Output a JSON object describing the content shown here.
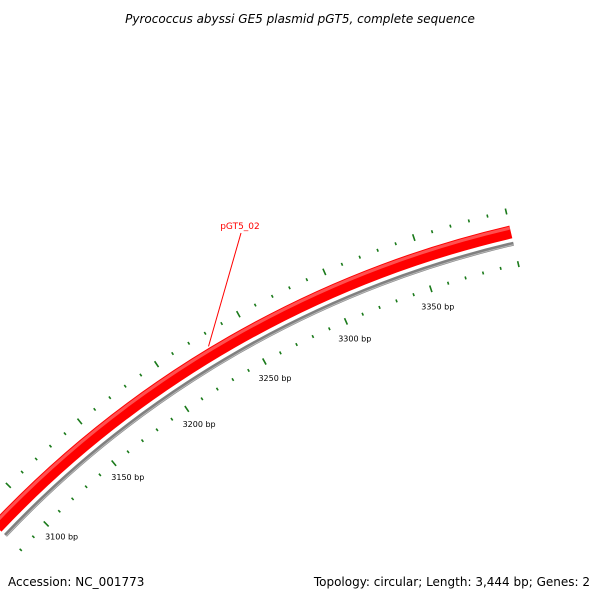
{
  "title": "Pyrococcus abyssi GE5 plasmid pGT5, complete sequence",
  "footer": {
    "accession": "Accession: NC_001773",
    "summary": "Topology: circular; Length: 3,444 bp; Genes: 2"
  },
  "map": {
    "genome_length_bp": 3444,
    "gene": {
      "name": "pGT5_02",
      "color": "#ff0000"
    },
    "backbone_color": "#808080",
    "tick_color": "#1a7a1a",
    "major_ticks": [
      {
        "bp": 3100,
        "label": "3100 bp"
      },
      {
        "bp": 3150,
        "label": "3150 bp"
      },
      {
        "bp": 3200,
        "label": "3200 bp"
      },
      {
        "bp": 3250,
        "label": "3250 bp"
      },
      {
        "bp": 3300,
        "label": "3300 bp"
      },
      {
        "bp": 3350,
        "label": "3350 bp"
      }
    ],
    "minor_tick_interval_bp": 10,
    "visible_range_bp": [
      3080,
      3400
    ]
  }
}
